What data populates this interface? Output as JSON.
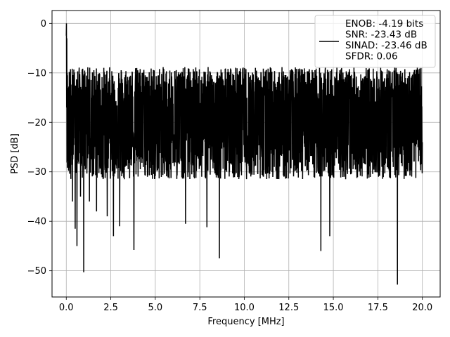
{
  "chart_data": {
    "type": "line",
    "title": "",
    "xlabel": "Frequency [MHz]",
    "ylabel": "PSD [dB]",
    "xlim": [
      -0.8,
      21.0
    ],
    "ylim": [
      -55.3,
      2.6
    ],
    "x_ticks": [
      0.0,
      2.5,
      5.0,
      7.5,
      10.0,
      12.5,
      15.0,
      17.5,
      20.0
    ],
    "x_tick_labels": [
      "0.0",
      "2.5",
      "5.0",
      "7.5",
      "10.0",
      "12.5",
      "15.0",
      "17.5",
      "20.0"
    ],
    "y_ticks": [
      0,
      -10,
      -20,
      -30,
      -40,
      -50
    ],
    "y_tick_labels": [
      "0",
      "−10",
      "−20",
      "−30",
      "−40",
      "−50"
    ],
    "grid": true,
    "legend_position": "top-right",
    "line_color": "#000000",
    "series": [
      {
        "name": "ENOB: -4.19 bits\nSNR: -23.43 dB\nSINAD: -23.46 dB\nSFDR: 0.06",
        "noise_floor_db": {
          "median": -20,
          "upper_typical": -12,
          "lower_typical": -28
        },
        "x": [
          0.0,
          0.01,
          0.02,
          0.03,
          0.05,
          0.1,
          0.2,
          0.35,
          0.5,
          0.6,
          0.8,
          0.98,
          1.3,
          1.7,
          2.3,
          2.65,
          3.0,
          3.8,
          6.7,
          7.9,
          8.6,
          14.3,
          14.8,
          18.6,
          20.0
        ],
        "y": [
          -2.5,
          0.0,
          -17.0,
          -3.0,
          -10.0,
          -25.0,
          -19.0,
          -36.0,
          -41.5,
          -45.0,
          -35.0,
          -50.3,
          -36.0,
          -38.0,
          -39.0,
          -43.0,
          -41.0,
          -45.8,
          -40.5,
          -41.2,
          -47.5,
          -46.0,
          -43.0,
          -52.8,
          -24.0
        ]
      }
    ]
  }
}
